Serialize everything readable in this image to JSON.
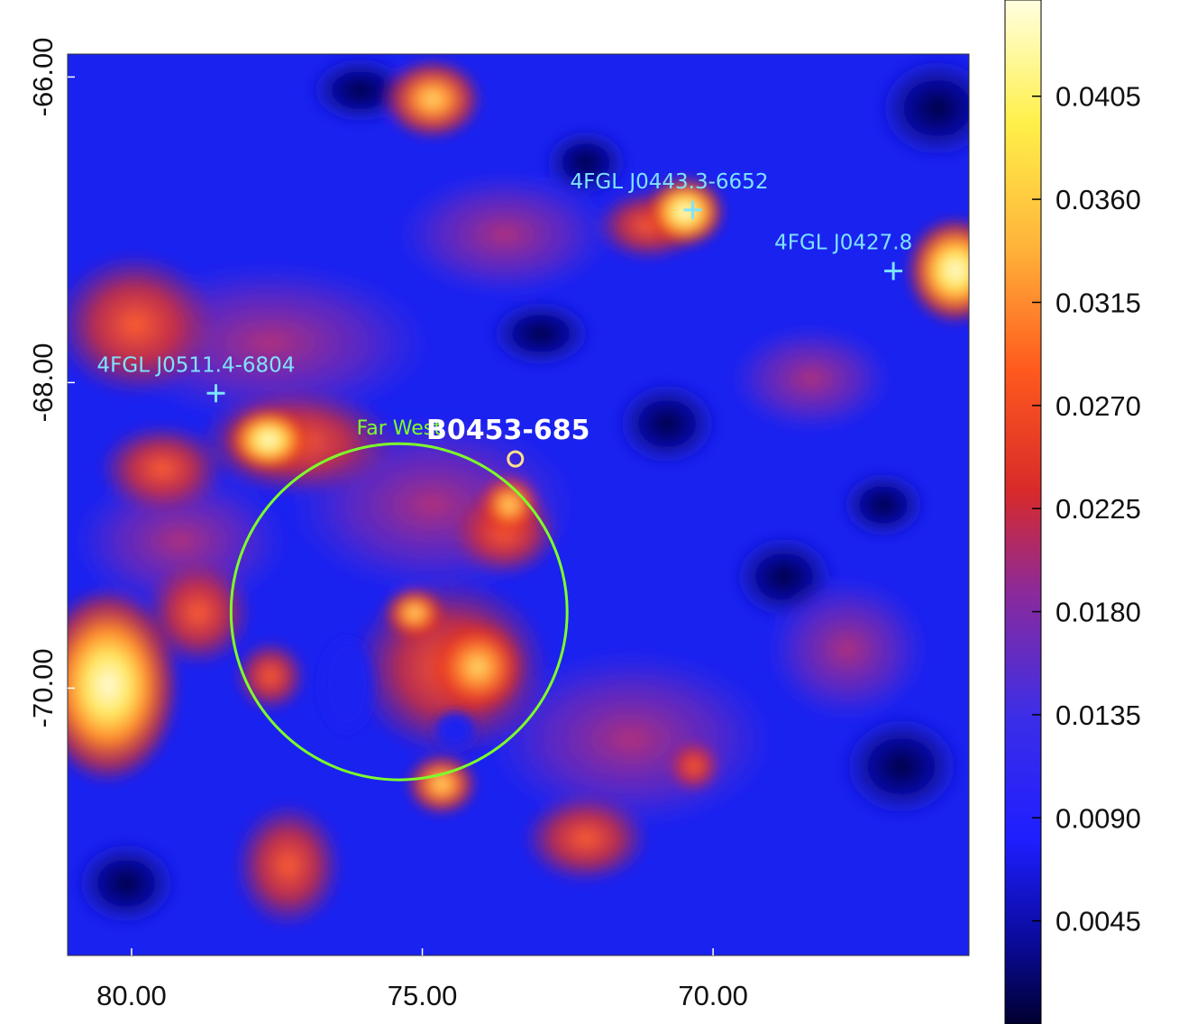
{
  "image": {
    "type": "heatmap",
    "colormap": "heat (dark blue - blue - red - orange - yellow - white)"
  },
  "axes": {
    "x": {
      "ticks": [
        {
          "value": 80,
          "label": "80.00"
        },
        {
          "value": 75,
          "label": "75.00"
        },
        {
          "value": 70,
          "label": "70.00"
        }
      ],
      "range": [
        81.1,
        65.6
      ]
    },
    "y": {
      "ticks": [
        {
          "value": -66,
          "label": "-66.00"
        },
        {
          "value": -68,
          "label": "-68.00"
        },
        {
          "value": -70,
          "label": "-70.00"
        }
      ],
      "range": [
        -65.85,
        -71.75
      ]
    }
  },
  "colorbar": {
    "ticks": [
      {
        "value": 0.0405,
        "label": "0.0405"
      },
      {
        "value": 0.036,
        "label": "0.0360"
      },
      {
        "value": 0.0315,
        "label": "0.0315"
      },
      {
        "value": 0.027,
        "label": "0.0270"
      },
      {
        "value": 0.0225,
        "label": "0.0225"
      },
      {
        "value": 0.018,
        "label": "0.0180"
      },
      {
        "value": 0.0135,
        "label": "0.0135"
      },
      {
        "value": 0.009,
        "label": "0.0090"
      },
      {
        "value": 0.0045,
        "label": "0.0045"
      }
    ],
    "range": [
      0.0,
      0.0447
    ]
  },
  "sources": [
    {
      "name": "4FGL J0443.3-6652",
      "x": 70.35,
      "y": -66.87,
      "color": "#7fe3ff"
    },
    {
      "name": "4FGL J0427.8",
      "x": 66.9,
      "y": -67.27,
      "color": "#7fe3ff"
    },
    {
      "name": "4FGL J0511.4-6804",
      "x": 78.55,
      "y": -68.07,
      "color": "#7fe3ff"
    }
  ],
  "target": {
    "name": "B0453-685",
    "x": 73.4,
    "y": -68.5,
    "color": "#ffe08a"
  },
  "region": {
    "label": "Far West",
    "center_x": 75.4,
    "center_y": -69.5,
    "radius_deg": 1.1,
    "color": "#7dff2a"
  }
}
